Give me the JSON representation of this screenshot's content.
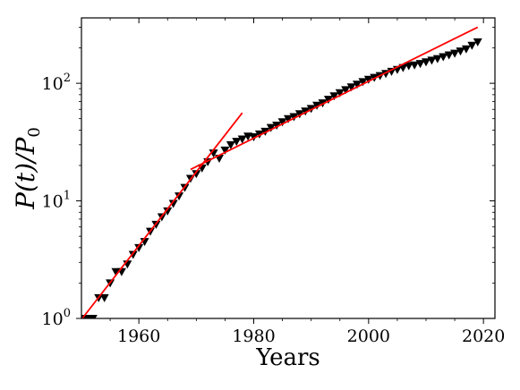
{
  "chart_data": {
    "type": "scatter",
    "title": "",
    "xlabel": "Years",
    "ylabel": "P(t)/P0",
    "ylabel_parts": {
      "numerator": "P(t)",
      "slash": "/",
      "denominator": "P",
      "subscript": "0"
    },
    "xlim": [
      1950,
      2022
    ],
    "ylim": [
      1,
      360
    ],
    "yscale": "log",
    "grid": false,
    "xticks": [
      1960,
      1980,
      2000,
      2020
    ],
    "xtick_labels": [
      "1960",
      "1980",
      "2000",
      "2020"
    ],
    "yticks": [
      1,
      10,
      100
    ],
    "ytick_labels": [
      {
        "base": "10",
        "exp": "0"
      },
      {
        "base": "10",
        "exp": "1"
      },
      {
        "base": "10",
        "exp": "2"
      }
    ],
    "series": [
      {
        "kind": "marker",
        "marker": "triangle-down",
        "color": "#000000",
        "x": [
          1950,
          1951,
          1952,
          1953,
          1954,
          1955,
          1956,
          1957,
          1958,
          1959,
          1960,
          1961,
          1962,
          1963,
          1964,
          1965,
          1966,
          1967,
          1968,
          1969,
          1970,
          1971,
          1972,
          1973,
          1974,
          1975,
          1976,
          1977,
          1978,
          1979,
          1980,
          1981,
          1982,
          1983,
          1984,
          1985,
          1986,
          1987,
          1988,
          1989,
          1990,
          1991,
          1992,
          1993,
          1994,
          1995,
          1996,
          1997,
          1998,
          1999,
          2000,
          2001,
          2002,
          2003,
          2004,
          2005,
          2006,
          2007,
          2008,
          2009,
          2010,
          2011,
          2012,
          2013,
          2014,
          2015,
          2016,
          2017,
          2018,
          2019
        ],
        "y": [
          1.0,
          1.0,
          1.0,
          1.5,
          1.5,
          2.0,
          2.5,
          2.5,
          2.9,
          3.5,
          4.0,
          4.5,
          5.5,
          6.3,
          7.3,
          8.2,
          9.5,
          11.0,
          13.0,
          15.5,
          17.0,
          19.0,
          21.5,
          25.5,
          23.0,
          27.0,
          30.0,
          32.0,
          33.5,
          35.5,
          35.0,
          37.0,
          39.0,
          42.0,
          44.0,
          47.0,
          50.0,
          52.0,
          55.0,
          58.0,
          61.0,
          65.0,
          68.0,
          73.0,
          78.0,
          83.0,
          88.0,
          93.0,
          98.0,
          103.0,
          108.0,
          112.0,
          116.0,
          121.0,
          126.0,
          131.0,
          136.0,
          141.0,
          143.0,
          147.0,
          152.0,
          157.0,
          162.0,
          168.0,
          174.0,
          180.0,
          188.0,
          196.0,
          210.0,
          225.0
        ]
      },
      {
        "kind": "line",
        "color": "#ff0000",
        "x": [
          1950,
          1978
        ],
        "y": [
          0.98,
          56
        ]
      },
      {
        "kind": "line",
        "color": "#ff0000",
        "x": [
          1969,
          2019
        ],
        "y": [
          18.5,
          300
        ]
      }
    ]
  }
}
